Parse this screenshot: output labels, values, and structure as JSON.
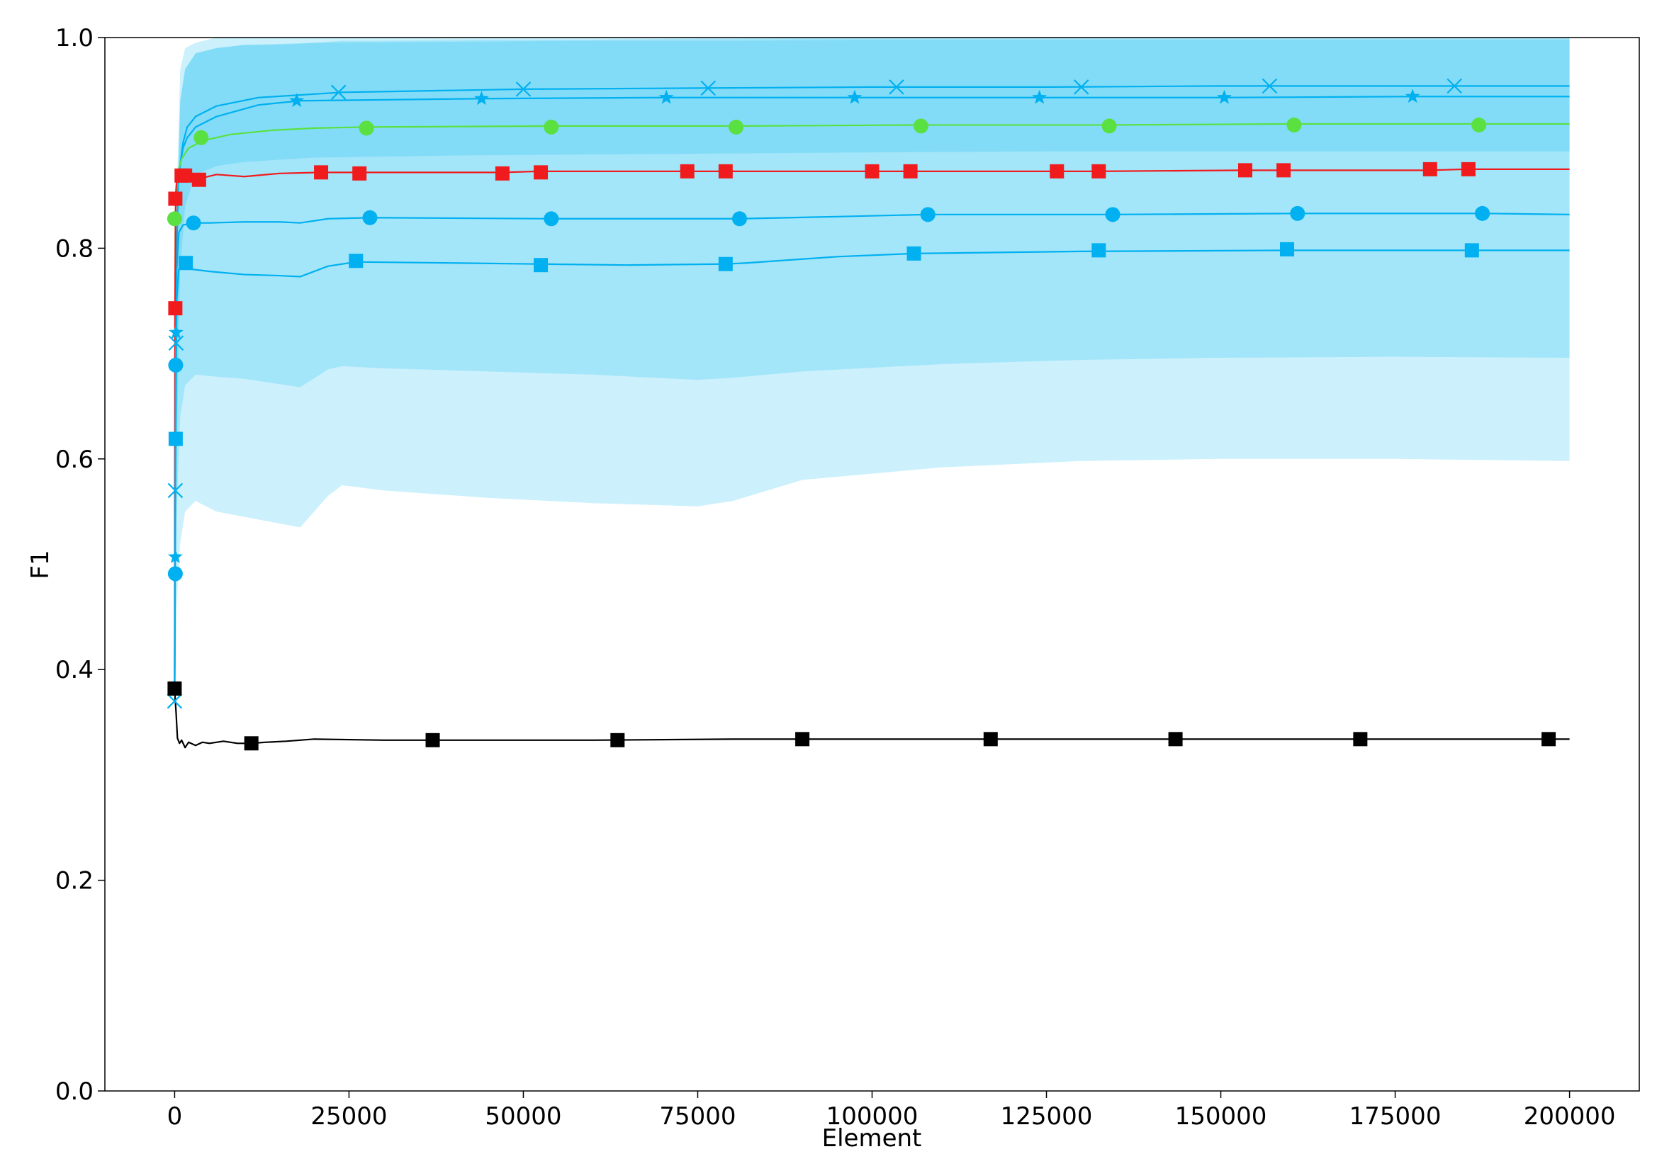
{
  "chart_data": {
    "type": "line",
    "title": "",
    "xlabel": "Element",
    "ylabel": "F1",
    "xlim": [
      -10000,
      210000
    ],
    "ylim": [
      0.0,
      1.0
    ],
    "xticks": [
      0,
      25000,
      50000,
      75000,
      100000,
      125000,
      150000,
      175000,
      200000
    ],
    "yticks": [
      0.0,
      0.2,
      0.4,
      0.6,
      0.8,
      1.0
    ],
    "xtick_labels": [
      "0",
      "25000",
      "50000",
      "75000",
      "100000",
      "125000",
      "150000",
      "175000",
      "200000"
    ],
    "ytick_labels": [
      "0.0",
      "0.2",
      "0.4",
      "0.6",
      "0.8",
      "1.0"
    ],
    "grid": false,
    "legend": "none",
    "bands": [
      {
        "color": "#00b8f0",
        "opacity": 0.2,
        "x": [
          0,
          50,
          300,
          800,
          1500,
          3000,
          6000,
          10000,
          14000,
          18000,
          22000,
          24000,
          30000,
          45000,
          60000,
          75000,
          80000,
          90000,
          110000,
          130000,
          150000,
          175000,
          200000
        ],
        "low": [
          0.37,
          0.38,
          0.46,
          0.52,
          0.55,
          0.56,
          0.55,
          0.545,
          0.54,
          0.535,
          0.565,
          0.575,
          0.57,
          0.563,
          0.558,
          0.555,
          0.56,
          0.58,
          0.592,
          0.598,
          0.6,
          0.6,
          0.598
        ],
        "high": [
          0.4,
          0.55,
          0.85,
          0.97,
          0.99,
          0.995,
          1.0,
          1.0,
          1.0,
          1.0,
          1.0,
          1.0,
          1.0,
          1.0,
          1.0,
          1.0,
          1.0,
          1.0,
          1.0,
          1.0,
          1.0,
          1.0,
          1.0
        ]
      },
      {
        "color": "#00b8f0",
        "opacity": 0.2,
        "x": [
          0,
          50,
          300,
          800,
          1500,
          3000,
          6000,
          10000,
          14000,
          18000,
          22000,
          24000,
          30000,
          45000,
          60000,
          75000,
          80000,
          90000,
          110000,
          130000,
          150000,
          175000,
          200000
        ],
        "low": [
          0.37,
          0.4,
          0.55,
          0.64,
          0.67,
          0.68,
          0.678,
          0.676,
          0.672,
          0.668,
          0.685,
          0.688,
          0.686,
          0.683,
          0.68,
          0.675,
          0.677,
          0.683,
          0.69,
          0.694,
          0.696,
          0.697,
          0.696
        ],
        "high": [
          0.4,
          0.55,
          0.82,
          0.94,
          0.97,
          0.985,
          0.99,
          0.993,
          0.993,
          0.994,
          0.996,
          0.997,
          0.997,
          0.998,
          0.998,
          0.999,
          0.999,
          1.0,
          1.0,
          1.0,
          1.0,
          1.0,
          1.0
        ]
      },
      {
        "color": "#00b8f0",
        "opacity": 0.2,
        "x": [
          0,
          50,
          300,
          800,
          1500,
          3000,
          6000,
          10000,
          20000,
          40000,
          60000,
          80000,
          100000,
          125000,
          150000,
          175000,
          200000
        ],
        "low": [
          0.37,
          0.4,
          0.6,
          0.78,
          0.84,
          0.87,
          0.878,
          0.882,
          0.886,
          0.888,
          0.889,
          0.89,
          0.891,
          0.892,
          0.892,
          0.892,
          0.892
        ],
        "high": [
          0.4,
          0.55,
          0.8,
          0.94,
          0.97,
          0.985,
          0.99,
          0.993,
          0.995,
          0.996,
          0.997,
          0.997,
          0.998,
          0.998,
          0.998,
          0.998,
          0.998
        ]
      }
    ],
    "series": [
      {
        "color": "#00b0f0",
        "marker": "x",
        "x": [
          0,
          60,
          150,
          300,
          500,
          800,
          1200,
          1800,
          3000,
          6000,
          12000,
          24000,
          50000,
          75000,
          100000,
          125000,
          150000,
          175000,
          200000
        ],
        "y": [
          0.38,
          0.57,
          0.71,
          0.8,
          0.86,
          0.88,
          0.9,
          0.915,
          0.925,
          0.935,
          0.943,
          0.948,
          0.951,
          0.952,
          0.953,
          0.953,
          0.954,
          0.954,
          0.954
        ],
        "marker_x": [
          0,
          100,
          200,
          23500,
          50000,
          76500,
          103500,
          130000,
          157000,
          183500
        ],
        "marker_y": [
          0.37,
          0.57,
          0.71,
          0.948,
          0.951,
          0.952,
          0.953,
          0.953,
          0.954,
          0.954
        ]
      },
      {
        "color": "#00b0f0",
        "marker": "star",
        "x": [
          0,
          60,
          150,
          300,
          500,
          800,
          1200,
          1800,
          3000,
          6000,
          12000,
          18000,
          44000,
          70000,
          97000,
          124000,
          150000,
          177000,
          200000
        ],
        "y": [
          0.38,
          0.51,
          0.72,
          0.8,
          0.86,
          0.88,
          0.895,
          0.905,
          0.915,
          0.925,
          0.936,
          0.94,
          0.942,
          0.943,
          0.943,
          0.943,
          0.943,
          0.944,
          0.944
        ],
        "marker_x": [
          100,
          200,
          17500,
          44000,
          70500,
          97500,
          124000,
          150500,
          177500
        ],
        "marker_y": [
          0.507,
          0.72,
          0.94,
          0.942,
          0.943,
          0.943,
          0.943,
          0.943,
          0.944
        ]
      },
      {
        "color": "#5ae041",
        "marker": "circle",
        "x": [
          0,
          100,
          300,
          600,
          1000,
          2000,
          4000,
          8000,
          14000,
          20000,
          27000,
          54000,
          81000,
          107000,
          134000,
          160000,
          187000,
          200000
        ],
        "y": [
          0.38,
          0.83,
          0.86,
          0.875,
          0.885,
          0.895,
          0.902,
          0.908,
          0.912,
          0.914,
          0.915,
          0.916,
          0.916,
          0.917,
          0.917,
          0.918,
          0.918,
          0.918
        ],
        "marker_x": [
          0,
          3800,
          27500,
          54000,
          80500,
          107000,
          134000,
          160500,
          187000
        ],
        "marker_y": [
          0.828,
          0.905,
          0.914,
          0.915,
          0.915,
          0.916,
          0.916,
          0.917,
          0.917
        ]
      },
      {
        "color": "#f01b1d",
        "marker": "square",
        "x": [
          0,
          50,
          150,
          300,
          600,
          1000,
          2000,
          3500,
          6000,
          10000,
          15000,
          21000,
          26000,
          47000,
          52000,
          73000,
          79000,
          100000,
          105000,
          126000,
          132000,
          153000,
          159000,
          180000,
          185000,
          200000
        ],
        "y": [
          0.38,
          0.74,
          0.85,
          0.865,
          0.868,
          0.87,
          0.868,
          0.866,
          0.87,
          0.868,
          0.871,
          0.872,
          0.872,
          0.872,
          0.873,
          0.873,
          0.873,
          0.873,
          0.873,
          0.873,
          0.873,
          0.874,
          0.874,
          0.874,
          0.875,
          0.875
        ],
        "marker_x": [
          100,
          100,
          1000,
          1500,
          3500,
          21000,
          26500,
          47000,
          52500,
          73500,
          79000,
          100000,
          105500,
          126500,
          132500,
          153500,
          159000,
          180000,
          185500
        ],
        "marker_y": [
          0.743,
          0.847,
          0.869,
          0.869,
          0.865,
          0.872,
          0.871,
          0.871,
          0.872,
          0.873,
          0.873,
          0.873,
          0.873,
          0.873,
          0.873,
          0.874,
          0.874,
          0.875,
          0.875
        ]
      },
      {
        "color": "#00b0f0",
        "marker": "circle",
        "x": [
          0,
          50,
          150,
          300,
          600,
          1200,
          2500,
          5000,
          10000,
          15000,
          18000,
          22000,
          28000,
          54000,
          70000,
          81000,
          95000,
          108000,
          134000,
          161000,
          188000,
          200000
        ],
        "y": [
          0.38,
          0.49,
          0.69,
          0.78,
          0.815,
          0.822,
          0.824,
          0.824,
          0.825,
          0.825,
          0.824,
          0.828,
          0.829,
          0.828,
          0.828,
          0.828,
          0.83,
          0.832,
          0.832,
          0.833,
          0.833,
          0.832
        ],
        "marker_x": [
          100,
          150,
          2700,
          28000,
          54000,
          81000,
          108000,
          134500,
          161000,
          187500
        ],
        "marker_y": [
          0.491,
          0.689,
          0.824,
          0.829,
          0.828,
          0.828,
          0.832,
          0.832,
          0.833,
          0.833
        ]
      },
      {
        "color": "#00b0f0",
        "marker": "square",
        "x": [
          0,
          50,
          150,
          300,
          600,
          1200,
          2500,
          5000,
          10000,
          15000,
          18000,
          22000,
          26000,
          40000,
          52000,
          65000,
          79000,
          82000,
          95000,
          106000,
          130000,
          160000,
          186000,
          200000
        ],
        "y": [
          0.38,
          0.45,
          0.62,
          0.75,
          0.78,
          0.785,
          0.78,
          0.778,
          0.775,
          0.774,
          0.773,
          0.783,
          0.787,
          0.786,
          0.785,
          0.784,
          0.785,
          0.786,
          0.792,
          0.795,
          0.797,
          0.798,
          0.798,
          0.798
        ],
        "marker_x": [
          150,
          1600,
          26000,
          52500,
          79000,
          106000,
          132500,
          159500,
          186000
        ],
        "marker_y": [
          0.619,
          0.786,
          0.788,
          0.784,
          0.785,
          0.795,
          0.798,
          0.799,
          0.798
        ]
      },
      {
        "color": "#000000",
        "marker": "square",
        "x": [
          0,
          200,
          400,
          700,
          1000,
          1500,
          2000,
          3000,
          4000,
          5000,
          7000,
          9000,
          11000,
          13000,
          16000,
          20000,
          30000,
          40000,
          60000,
          80000,
          100000,
          120000,
          140000,
          160000,
          180000,
          200000
        ],
        "y": [
          0.38,
          0.36,
          0.335,
          0.33,
          0.333,
          0.326,
          0.331,
          0.328,
          0.331,
          0.33,
          0.332,
          0.33,
          0.33,
          0.331,
          0.332,
          0.334,
          0.333,
          0.333,
          0.333,
          0.334,
          0.334,
          0.334,
          0.334,
          0.334,
          0.334,
          0.334
        ],
        "marker_x": [
          0,
          11000,
          37000,
          63500,
          90000,
          117000,
          143500,
          170000,
          197000
        ],
        "marker_y": [
          0.382,
          0.33,
          0.333,
          0.333,
          0.334,
          0.334,
          0.334,
          0.334,
          0.334
        ]
      }
    ]
  }
}
